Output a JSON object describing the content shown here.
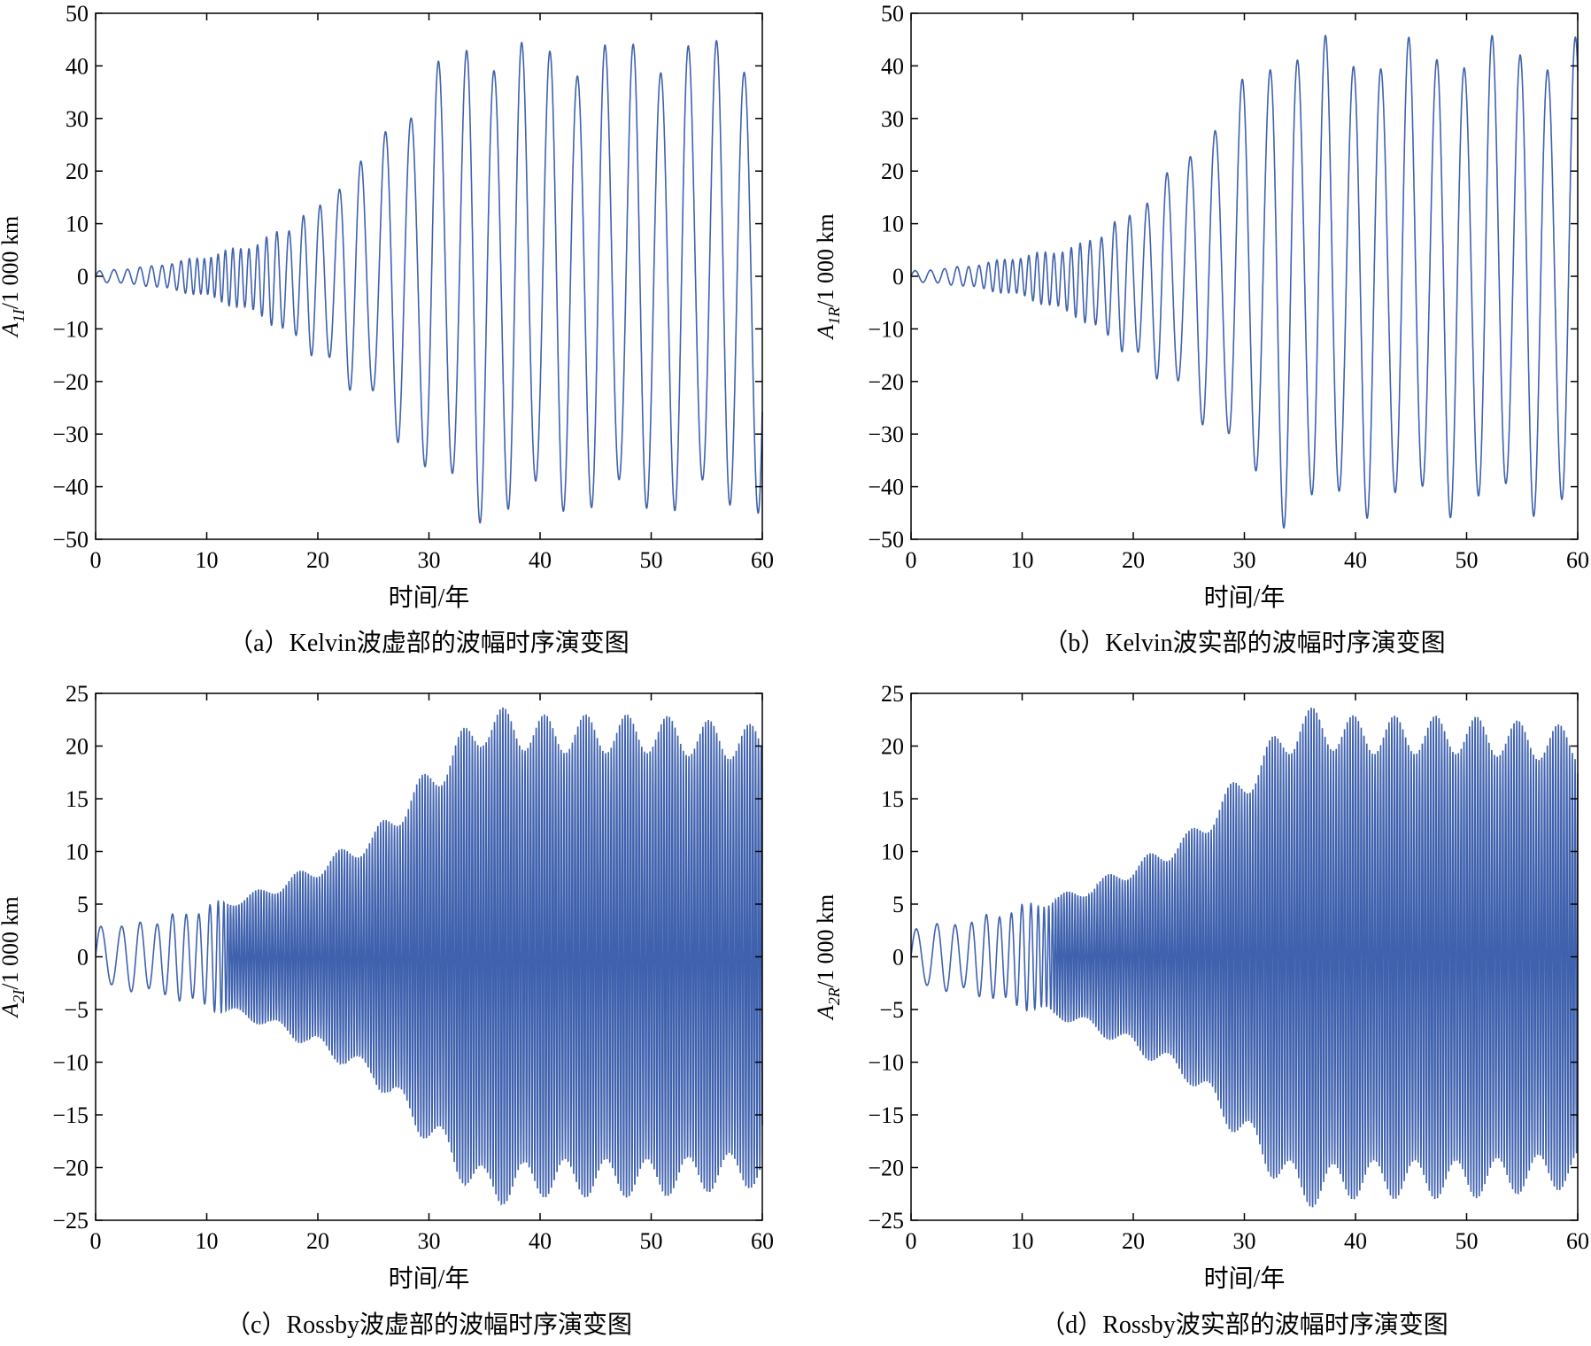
{
  "chart_data": [
    {
      "id": "a",
      "type": "line",
      "caption": "（a）Kelvin波虚部的波幅时序演变图",
      "xlabel": "时间/年",
      "ylabel": {
        "base": "A",
        "sub": "1I",
        "unit": "/1 000 km"
      },
      "xlim": [
        0,
        60
      ],
      "ylim": [
        -50,
        50
      ],
      "xticks": [
        "0",
        "10",
        "20",
        "30",
        "40",
        "50",
        "60"
      ],
      "yticks": [
        "50",
        "40",
        "30",
        "20",
        "10",
        "0",
        "−10",
        "−20",
        "−30",
        "−40",
        "−50"
      ],
      "grid": false,
      "color": "#1f47a0",
      "envelope_t": [
        0,
        5,
        10,
        15,
        20,
        25,
        30,
        34,
        40,
        50,
        60
      ],
      "envelope_upper": [
        1,
        2,
        4,
        7,
        14,
        26,
        40,
        47,
        45,
        46,
        46
      ],
      "envelope_lower": [
        -1,
        -2,
        -4,
        -8,
        -16,
        -26,
        -40,
        -48,
        -46,
        -46,
        -46
      ],
      "period_t": [
        0,
        10,
        15,
        20,
        25,
        30,
        40,
        60
      ],
      "period": [
        1.4,
        0.6,
        0.8,
        1.6,
        2.2,
        2.5,
        2.5,
        2.5
      ]
    },
    {
      "id": "b",
      "type": "line",
      "caption": "（b）Kelvin波实部的波幅时序演变图",
      "xlabel": "时间/年",
      "ylabel": {
        "base": "A",
        "sub": "1R",
        "unit": "/1 000 km"
      },
      "xlim": [
        0,
        60
      ],
      "ylim": [
        -50,
        50
      ],
      "xticks": [
        "0",
        "10",
        "20",
        "30",
        "40",
        "50",
        "60"
      ],
      "yticks": [
        "50",
        "40",
        "30",
        "20",
        "10",
        "0",
        "−10",
        "−20",
        "−30",
        "−40",
        "−50"
      ],
      "grid": false,
      "color": "#1f47a0",
      "envelope_t": [
        0,
        5,
        10,
        15,
        20,
        25,
        30,
        33,
        40,
        50,
        60
      ],
      "envelope_upper": [
        1,
        2,
        4,
        6,
        13,
        25,
        38,
        47,
        45,
        46,
        46
      ],
      "envelope_lower": [
        -1,
        -2,
        -4,
        -8,
        -16,
        -25,
        -38,
        -48,
        -46,
        -46,
        -46
      ],
      "period_t": [
        0,
        8,
        15,
        20,
        25,
        30,
        40,
        60
      ],
      "period": [
        1.5,
        0.7,
        0.8,
        1.5,
        2.2,
        2.5,
        2.5,
        2.5
      ]
    },
    {
      "id": "c",
      "type": "line",
      "caption": "（c）Rossby波虚部的波幅时序演变图",
      "xlabel": "时间/年",
      "ylabel": {
        "base": "A",
        "sub": "2I",
        "unit": "/1 000 km"
      },
      "xlim": [
        0,
        60
      ],
      "ylim": [
        -25,
        25
      ],
      "xticks": [
        "0",
        "10",
        "20",
        "30",
        "40",
        "50",
        "60"
      ],
      "yticks": [
        "25",
        "20",
        "15",
        "10",
        "5",
        "0",
        "−5",
        "−10",
        "−15",
        "−20",
        "−25"
      ],
      "grid": false,
      "color": "#1f47a0",
      "envelope_t": [
        0,
        5,
        10,
        15,
        20,
        25,
        30,
        35,
        40,
        50,
        60
      ],
      "envelope_upper": [
        3,
        3.5,
        5,
        6.5,
        9,
        12,
        18,
        24,
        23,
        23,
        22
      ],
      "envelope_lower": [
        -3,
        -3.5,
        -5,
        -6.5,
        -9,
        -12,
        -18,
        -24,
        -23,
        -23,
        -22
      ],
      "period_t": [
        0,
        10,
        12,
        60
      ],
      "period": [
        2.0,
        1.0,
        0.25,
        0.25
      ]
    },
    {
      "id": "d",
      "type": "line",
      "caption": "（d）Rossby波实部的波幅时序演变图",
      "xlabel": "时间/年",
      "ylabel": {
        "base": "A",
        "sub": "2R",
        "unit": "/1 000 km"
      },
      "xlim": [
        0,
        60
      ],
      "ylim": [
        -25,
        25
      ],
      "xticks": [
        "0",
        "10",
        "20",
        "30",
        "40",
        "50",
        "60"
      ],
      "yticks": [
        "25",
        "20",
        "15",
        "10",
        "5",
        "0",
        "−5",
        "−10",
        "−15",
        "−20",
        "−25"
      ],
      "grid": false,
      "color": "#1f47a0",
      "envelope_t": [
        0,
        5,
        10,
        15,
        20,
        25,
        30,
        35,
        40,
        50,
        60
      ],
      "envelope_upper": [
        3,
        3.5,
        5,
        6.5,
        9,
        12,
        18,
        24,
        23,
        23,
        22
      ],
      "envelope_lower": [
        -3,
        -3.5,
        -5,
        -6.5,
        -9,
        -12,
        -18,
        -24,
        -23,
        -23,
        -22
      ],
      "period_t": [
        0,
        10,
        13,
        60
      ],
      "period": [
        2.0,
        0.9,
        0.25,
        0.25
      ]
    }
  ]
}
